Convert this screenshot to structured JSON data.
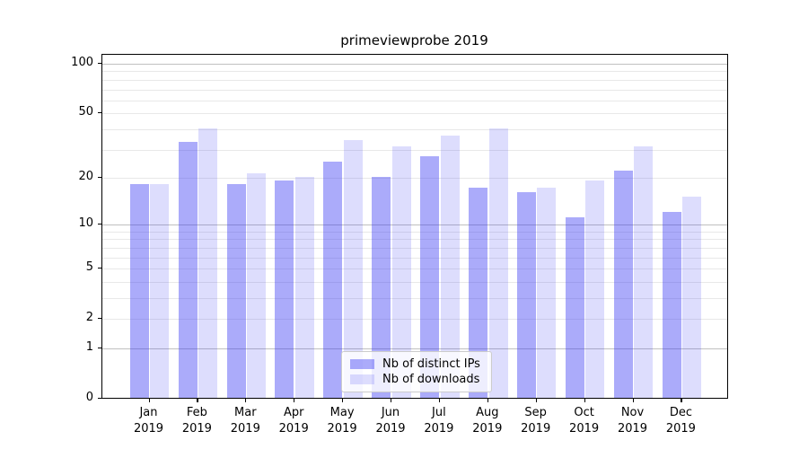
{
  "chart_data": {
    "type": "bar",
    "title": "primeviewprobe 2019",
    "xlabel": "",
    "ylabel": "",
    "x_tick_year": "2019",
    "categories": [
      "Jan",
      "Feb",
      "Mar",
      "Apr",
      "May",
      "Jun",
      "Jul",
      "Aug",
      "Sep",
      "Oct",
      "Nov",
      "Dec"
    ],
    "series": [
      {
        "name": "Nb of distinct IPs",
        "color": "rgba(56,56,244,0.42)",
        "values": [
          18,
          33,
          18,
          19,
          25,
          20,
          27,
          17,
          16,
          11,
          22,
          12
        ]
      },
      {
        "name": "Nb of downloads",
        "color": "rgba(56,56,244,0.17)",
        "values": [
          18,
          40,
          21,
          20,
          34,
          31,
          36,
          40,
          17,
          19,
          31,
          15
        ]
      }
    ],
    "yscale": "log10(value+1)",
    "y_tick_labels": [
      100,
      50,
      20,
      10,
      5,
      2,
      1,
      0
    ],
    "y_minor_gridlines": [
      2,
      3,
      4,
      5,
      6,
      7,
      8,
      9,
      20,
      30,
      40,
      50,
      60,
      70,
      80,
      90
    ],
    "y_major_gridlines": [
      1,
      10,
      100
    ],
    "ylim": [
      0,
      112
    ],
    "grid": "horizontal",
    "legend_position": "lower center"
  },
  "colors": {
    "bar_dark_over_white": "#a9a9fa",
    "bar_light_over_white": "#d9d9fa",
    "grid_minor": "#e8e8e8",
    "grid_major": "#c0c0c0",
    "spine": "#000000",
    "legend_border": "#cccccc"
  }
}
